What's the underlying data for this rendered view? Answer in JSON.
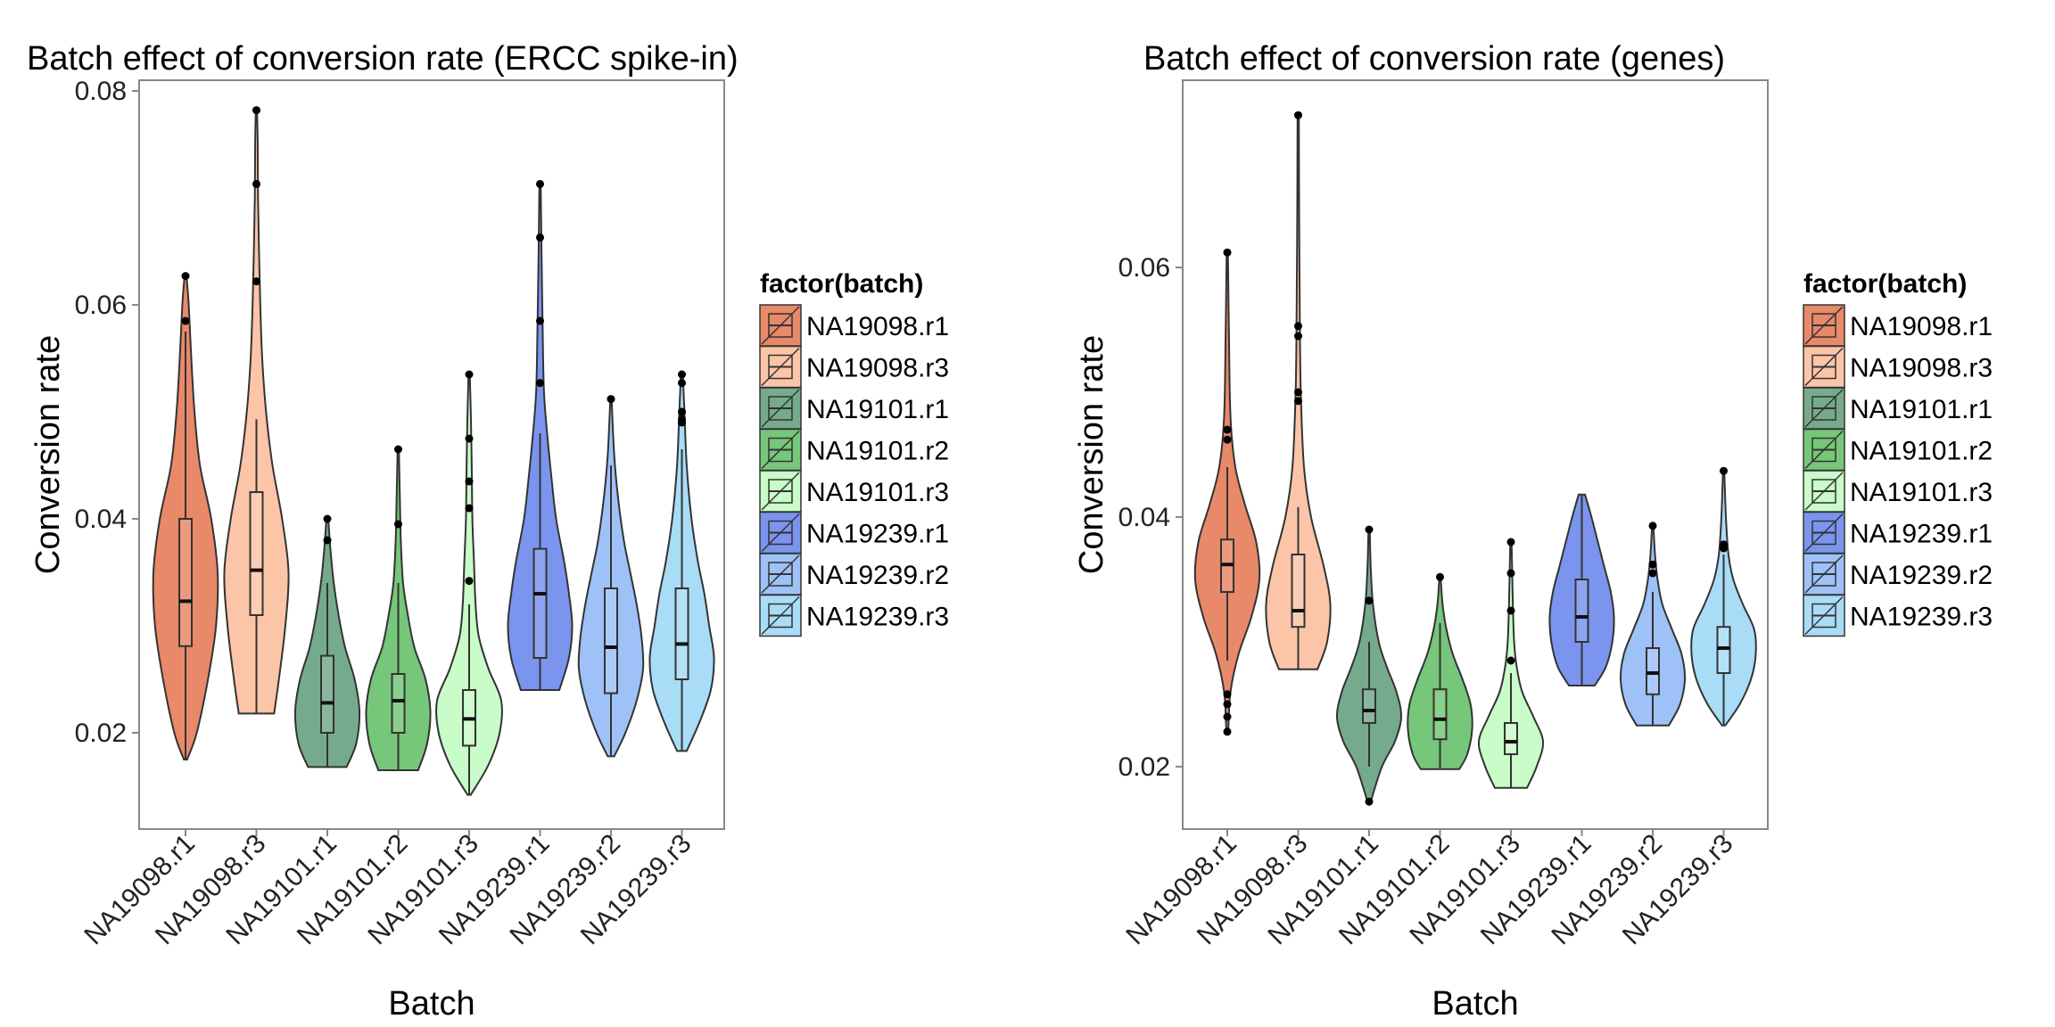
{
  "chart_data": [
    {
      "type": "violin",
      "title": "Batch effect of conversion rate (ERCC spike-in)",
      "xlabel": "Batch",
      "ylabel": "Conversion rate",
      "ylim": [
        0.011,
        0.081
      ],
      "yticks": [
        0.02,
        0.04,
        0.06,
        0.08
      ],
      "ytick_labels": [
        "0.02",
        "0.04",
        "0.06",
        "0.08"
      ],
      "categories": [
        "NA19098.r1",
        "NA19098.r3",
        "NA19101.r1",
        "NA19101.r2",
        "NA19101.r3",
        "NA19239.r1",
        "NA19239.r2",
        "NA19239.r3"
      ],
      "legend": {
        "title": "factor(batch)",
        "position": "right"
      },
      "series": [
        {
          "name": "NA19098.r1",
          "min": 0.0175,
          "q1": 0.0281,
          "median": 0.0323,
          "q3": 0.04,
          "max": 0.0627,
          "upper_whisker": 0.0575,
          "lower_whisker": 0.0175,
          "outliers": [
            0.0627,
            0.0585
          ],
          "density": [
            [
              0.0175,
              0.05
            ],
            [
              0.02,
              0.35
            ],
            [
              0.025,
              0.7
            ],
            [
              0.03,
              0.95
            ],
            [
              0.035,
              1.0
            ],
            [
              0.04,
              0.8
            ],
            [
              0.045,
              0.45
            ],
            [
              0.05,
              0.28
            ],
            [
              0.055,
              0.18
            ],
            [
              0.06,
              0.1
            ],
            [
              0.0627,
              0.03
            ]
          ]
        },
        {
          "name": "NA19098.r3",
          "min": 0.0218,
          "q1": 0.031,
          "median": 0.0352,
          "q3": 0.0425,
          "max": 0.0782,
          "upper_whisker": 0.0493,
          "lower_whisker": 0.0218,
          "outliers": [
            0.0782,
            0.0713,
            0.0622
          ],
          "density": [
            [
              0.0218,
              0.55
            ],
            [
              0.025,
              0.7
            ],
            [
              0.03,
              0.9
            ],
            [
              0.035,
              1.0
            ],
            [
              0.04,
              0.8
            ],
            [
              0.045,
              0.5
            ],
            [
              0.05,
              0.3
            ],
            [
              0.055,
              0.18
            ],
            [
              0.06,
              0.12
            ],
            [
              0.065,
              0.08
            ],
            [
              0.07,
              0.05
            ],
            [
              0.075,
              0.04
            ],
            [
              0.0782,
              0.02
            ]
          ]
        },
        {
          "name": "NA19101.r1",
          "min": 0.0168,
          "q1": 0.02,
          "median": 0.0228,
          "q3": 0.0272,
          "max": 0.04,
          "upper_whisker": 0.034,
          "lower_whisker": 0.0168,
          "outliers": [
            0.04,
            0.038
          ],
          "density": [
            [
              0.0168,
              0.6
            ],
            [
              0.019,
              0.9
            ],
            [
              0.022,
              1.0
            ],
            [
              0.025,
              0.85
            ],
            [
              0.028,
              0.55
            ],
            [
              0.031,
              0.35
            ],
            [
              0.034,
              0.2
            ],
            [
              0.037,
              0.1
            ],
            [
              0.04,
              0.03
            ]
          ]
        },
        {
          "name": "NA19101.r2",
          "min": 0.0165,
          "q1": 0.02,
          "median": 0.023,
          "q3": 0.0255,
          "max": 0.0465,
          "upper_whisker": 0.034,
          "lower_whisker": 0.0165,
          "outliers": [
            0.0465,
            0.0395
          ],
          "density": [
            [
              0.0165,
              0.62
            ],
            [
              0.019,
              0.9
            ],
            [
              0.022,
              1.0
            ],
            [
              0.025,
              0.85
            ],
            [
              0.028,
              0.5
            ],
            [
              0.031,
              0.3
            ],
            [
              0.034,
              0.15
            ],
            [
              0.038,
              0.08
            ],
            [
              0.042,
              0.05
            ],
            [
              0.0465,
              0.02
            ]
          ]
        },
        {
          "name": "NA19101.r3",
          "min": 0.0142,
          "q1": 0.0188,
          "median": 0.0213,
          "q3": 0.024,
          "max": 0.0535,
          "upper_whisker": 0.032,
          "lower_whisker": 0.0142,
          "outliers": [
            0.0535,
            0.0475,
            0.0435,
            0.041,
            0.0342
          ],
          "density": [
            [
              0.0142,
              0.05
            ],
            [
              0.017,
              0.6
            ],
            [
              0.02,
              0.95
            ],
            [
              0.023,
              1.0
            ],
            [
              0.026,
              0.6
            ],
            [
              0.029,
              0.3
            ],
            [
              0.032,
              0.2
            ],
            [
              0.036,
              0.15
            ],
            [
              0.04,
              0.1
            ],
            [
              0.045,
              0.08
            ],
            [
              0.05,
              0.05
            ],
            [
              0.0535,
              0.02
            ]
          ]
        },
        {
          "name": "NA19239.r1",
          "min": 0.024,
          "q1": 0.027,
          "median": 0.033,
          "q3": 0.0372,
          "max": 0.0713,
          "upper_whisker": 0.048,
          "lower_whisker": 0.024,
          "outliers": [
            0.0713,
            0.0663,
            0.0585,
            0.0527
          ],
          "density": [
            [
              0.024,
              0.6
            ],
            [
              0.027,
              0.9
            ],
            [
              0.03,
              1.0
            ],
            [
              0.033,
              0.9
            ],
            [
              0.036,
              0.75
            ],
            [
              0.04,
              0.5
            ],
            [
              0.044,
              0.35
            ],
            [
              0.048,
              0.22
            ],
            [
              0.052,
              0.12
            ],
            [
              0.058,
              0.08
            ],
            [
              0.064,
              0.05
            ],
            [
              0.0713,
              0.02
            ]
          ]
        },
        {
          "name": "NA19239.r2",
          "min": 0.0178,
          "q1": 0.0237,
          "median": 0.028,
          "q3": 0.0335,
          "max": 0.0512,
          "upper_whisker": 0.045,
          "lower_whisker": 0.0178,
          "outliers": [
            0.0512
          ],
          "density": [
            [
              0.0178,
              0.1
            ],
            [
              0.02,
              0.45
            ],
            [
              0.023,
              0.8
            ],
            [
              0.026,
              1.0
            ],
            [
              0.029,
              0.95
            ],
            [
              0.032,
              0.8
            ],
            [
              0.035,
              0.6
            ],
            [
              0.038,
              0.4
            ],
            [
              0.042,
              0.22
            ],
            [
              0.046,
              0.1
            ],
            [
              0.0512,
              0.02
            ]
          ]
        },
        {
          "name": "NA19239.r3",
          "min": 0.0183,
          "q1": 0.025,
          "median": 0.0283,
          "q3": 0.0335,
          "max": 0.0535,
          "upper_whisker": 0.0465,
          "lower_whisker": 0.0183,
          "outliers": [
            0.0535,
            0.0527,
            0.05,
            0.0493,
            0.049
          ],
          "density": [
            [
              0.0183,
              0.15
            ],
            [
              0.021,
              0.55
            ],
            [
              0.024,
              0.9
            ],
            [
              0.027,
              1.0
            ],
            [
              0.03,
              0.85
            ],
            [
              0.033,
              0.7
            ],
            [
              0.036,
              0.5
            ],
            [
              0.04,
              0.3
            ],
            [
              0.045,
              0.15
            ],
            [
              0.05,
              0.08
            ],
            [
              0.0535,
              0.03
            ]
          ]
        }
      ]
    },
    {
      "type": "violin",
      "title": "Batch effect of conversion rate (genes)",
      "xlabel": "Batch",
      "ylabel": "Conversion rate",
      "ylim": [
        0.015,
        0.075
      ],
      "yticks": [
        0.02,
        0.04,
        0.06
      ],
      "ytick_labels": [
        "0.02",
        "0.04",
        "0.06"
      ],
      "categories": [
        "NA19098.r1",
        "NA19098.r3",
        "NA19101.r1",
        "NA19101.r2",
        "NA19101.r3",
        "NA19239.r1",
        "NA19239.r2",
        "NA19239.r3"
      ],
      "legend": {
        "title": "factor(batch)",
        "position": "right"
      },
      "series": [
        {
          "name": "NA19098.r1",
          "min": 0.0228,
          "q1": 0.034,
          "median": 0.0362,
          "q3": 0.0382,
          "max": 0.0612,
          "upper_whisker": 0.044,
          "lower_whisker": 0.0285,
          "outliers": [
            0.0612,
            0.047,
            0.0462,
            0.0258,
            0.025,
            0.024,
            0.0228
          ],
          "density": [
            [
              0.0228,
              0.03
            ],
            [
              0.026,
              0.1
            ],
            [
              0.029,
              0.35
            ],
            [
              0.032,
              0.75
            ],
            [
              0.035,
              1.0
            ],
            [
              0.038,
              0.9
            ],
            [
              0.041,
              0.55
            ],
            [
              0.044,
              0.25
            ],
            [
              0.048,
              0.1
            ],
            [
              0.055,
              0.05
            ],
            [
              0.0612,
              0.02
            ]
          ]
        },
        {
          "name": "NA19098.r3",
          "min": 0.0278,
          "q1": 0.0312,
          "median": 0.0325,
          "q3": 0.037,
          "max": 0.0722,
          "upper_whisker": 0.0408,
          "lower_whisker": 0.0278,
          "outliers": [
            0.0722,
            0.0553,
            0.0545,
            0.05,
            0.0493
          ],
          "density": [
            [
              0.0278,
              0.6
            ],
            [
              0.03,
              0.9
            ],
            [
              0.033,
              1.0
            ],
            [
              0.036,
              0.8
            ],
            [
              0.04,
              0.4
            ],
            [
              0.044,
              0.18
            ],
            [
              0.05,
              0.08
            ],
            [
              0.056,
              0.05
            ],
            [
              0.064,
              0.03
            ],
            [
              0.0722,
              0.02
            ]
          ]
        },
        {
          "name": "NA19101.r1",
          "min": 0.0172,
          "q1": 0.0235,
          "median": 0.0245,
          "q3": 0.0262,
          "max": 0.039,
          "upper_whisker": 0.03,
          "lower_whisker": 0.02,
          "outliers": [
            0.039,
            0.0333,
            0.0172
          ],
          "density": [
            [
              0.0172,
              0.05
            ],
            [
              0.02,
              0.4
            ],
            [
              0.022,
              0.8
            ],
            [
              0.024,
              1.0
            ],
            [
              0.026,
              0.85
            ],
            [
              0.028,
              0.55
            ],
            [
              0.03,
              0.3
            ],
            [
              0.033,
              0.12
            ],
            [
              0.036,
              0.05
            ],
            [
              0.039,
              0.02
            ]
          ]
        },
        {
          "name": "NA19101.r2",
          "min": 0.0198,
          "q1": 0.0222,
          "median": 0.0238,
          "q3": 0.0262,
          "max": 0.0352,
          "upper_whisker": 0.0315,
          "lower_whisker": 0.0198,
          "outliers": [
            0.0352
          ],
          "density": [
            [
              0.0198,
              0.6
            ],
            [
              0.021,
              0.85
            ],
            [
              0.023,
              1.0
            ],
            [
              0.025,
              0.95
            ],
            [
              0.027,
              0.7
            ],
            [
              0.029,
              0.4
            ],
            [
              0.031,
              0.2
            ],
            [
              0.033,
              0.08
            ],
            [
              0.0352,
              0.02
            ]
          ]
        },
        {
          "name": "NA19101.r3",
          "min": 0.0183,
          "q1": 0.021,
          "median": 0.022,
          "q3": 0.0235,
          "max": 0.038,
          "upper_whisker": 0.0275,
          "lower_whisker": 0.0183,
          "outliers": [
            0.038,
            0.0355,
            0.0325,
            0.0285
          ],
          "density": [
            [
              0.0183,
              0.5
            ],
            [
              0.02,
              0.8
            ],
            [
              0.022,
              1.0
            ],
            [
              0.024,
              0.7
            ],
            [
              0.026,
              0.35
            ],
            [
              0.028,
              0.18
            ],
            [
              0.03,
              0.1
            ],
            [
              0.033,
              0.06
            ],
            [
              0.038,
              0.02
            ]
          ]
        },
        {
          "name": "NA19239.r1",
          "min": 0.0265,
          "q1": 0.03,
          "median": 0.032,
          "q3": 0.035,
          "max": 0.0418,
          "upper_whisker": 0.0418,
          "lower_whisker": 0.0265,
          "outliers": [],
          "density": [
            [
              0.0265,
              0.4
            ],
            [
              0.028,
              0.75
            ],
            [
              0.03,
              0.95
            ],
            [
              0.032,
              1.0
            ],
            [
              0.034,
              0.9
            ],
            [
              0.036,
              0.7
            ],
            [
              0.038,
              0.5
            ],
            [
              0.04,
              0.3
            ],
            [
              0.0418,
              0.1
            ]
          ]
        },
        {
          "name": "NA19239.r2",
          "min": 0.0233,
          "q1": 0.0258,
          "median": 0.0275,
          "q3": 0.0295,
          "max": 0.0393,
          "upper_whisker": 0.034,
          "lower_whisker": 0.0233,
          "outliers": [
            0.0393,
            0.0362,
            0.0355
          ],
          "density": [
            [
              0.0233,
              0.5
            ],
            [
              0.025,
              0.85
            ],
            [
              0.027,
              1.0
            ],
            [
              0.029,
              0.9
            ],
            [
              0.031,
              0.6
            ],
            [
              0.033,
              0.3
            ],
            [
              0.035,
              0.15
            ],
            [
              0.037,
              0.07
            ],
            [
              0.0393,
              0.02
            ]
          ]
        },
        {
          "name": "NA19239.r3",
          "min": 0.0233,
          "q1": 0.0275,
          "median": 0.0295,
          "q3": 0.0312,
          "max": 0.0437,
          "upper_whisker": 0.037,
          "lower_whisker": 0.0233,
          "outliers": [
            0.0437,
            0.0378,
            0.0375
          ],
          "density": [
            [
              0.0233,
              0.05
            ],
            [
              0.025,
              0.5
            ],
            [
              0.027,
              0.85
            ],
            [
              0.029,
              1.0
            ],
            [
              0.031,
              0.95
            ],
            [
              0.033,
              0.6
            ],
            [
              0.035,
              0.3
            ],
            [
              0.037,
              0.15
            ],
            [
              0.04,
              0.07
            ],
            [
              0.0437,
              0.02
            ]
          ]
        }
      ]
    }
  ],
  "colors": {
    "NA19098.r1": "#e8896a",
    "NA19098.r3": "#fcc5a8",
    "NA19101.r1": "#76aa8c",
    "NA19101.r2": "#76c779",
    "NA19101.r3": "#c8fcc8",
    "NA19239.r1": "#7b95ee",
    "NA19239.r2": "#9ec1f7",
    "NA19239.r3": "#a8dcf7",
    "panel_border": "#888888",
    "outline": "#333333",
    "box_fill": "#ffffff"
  }
}
